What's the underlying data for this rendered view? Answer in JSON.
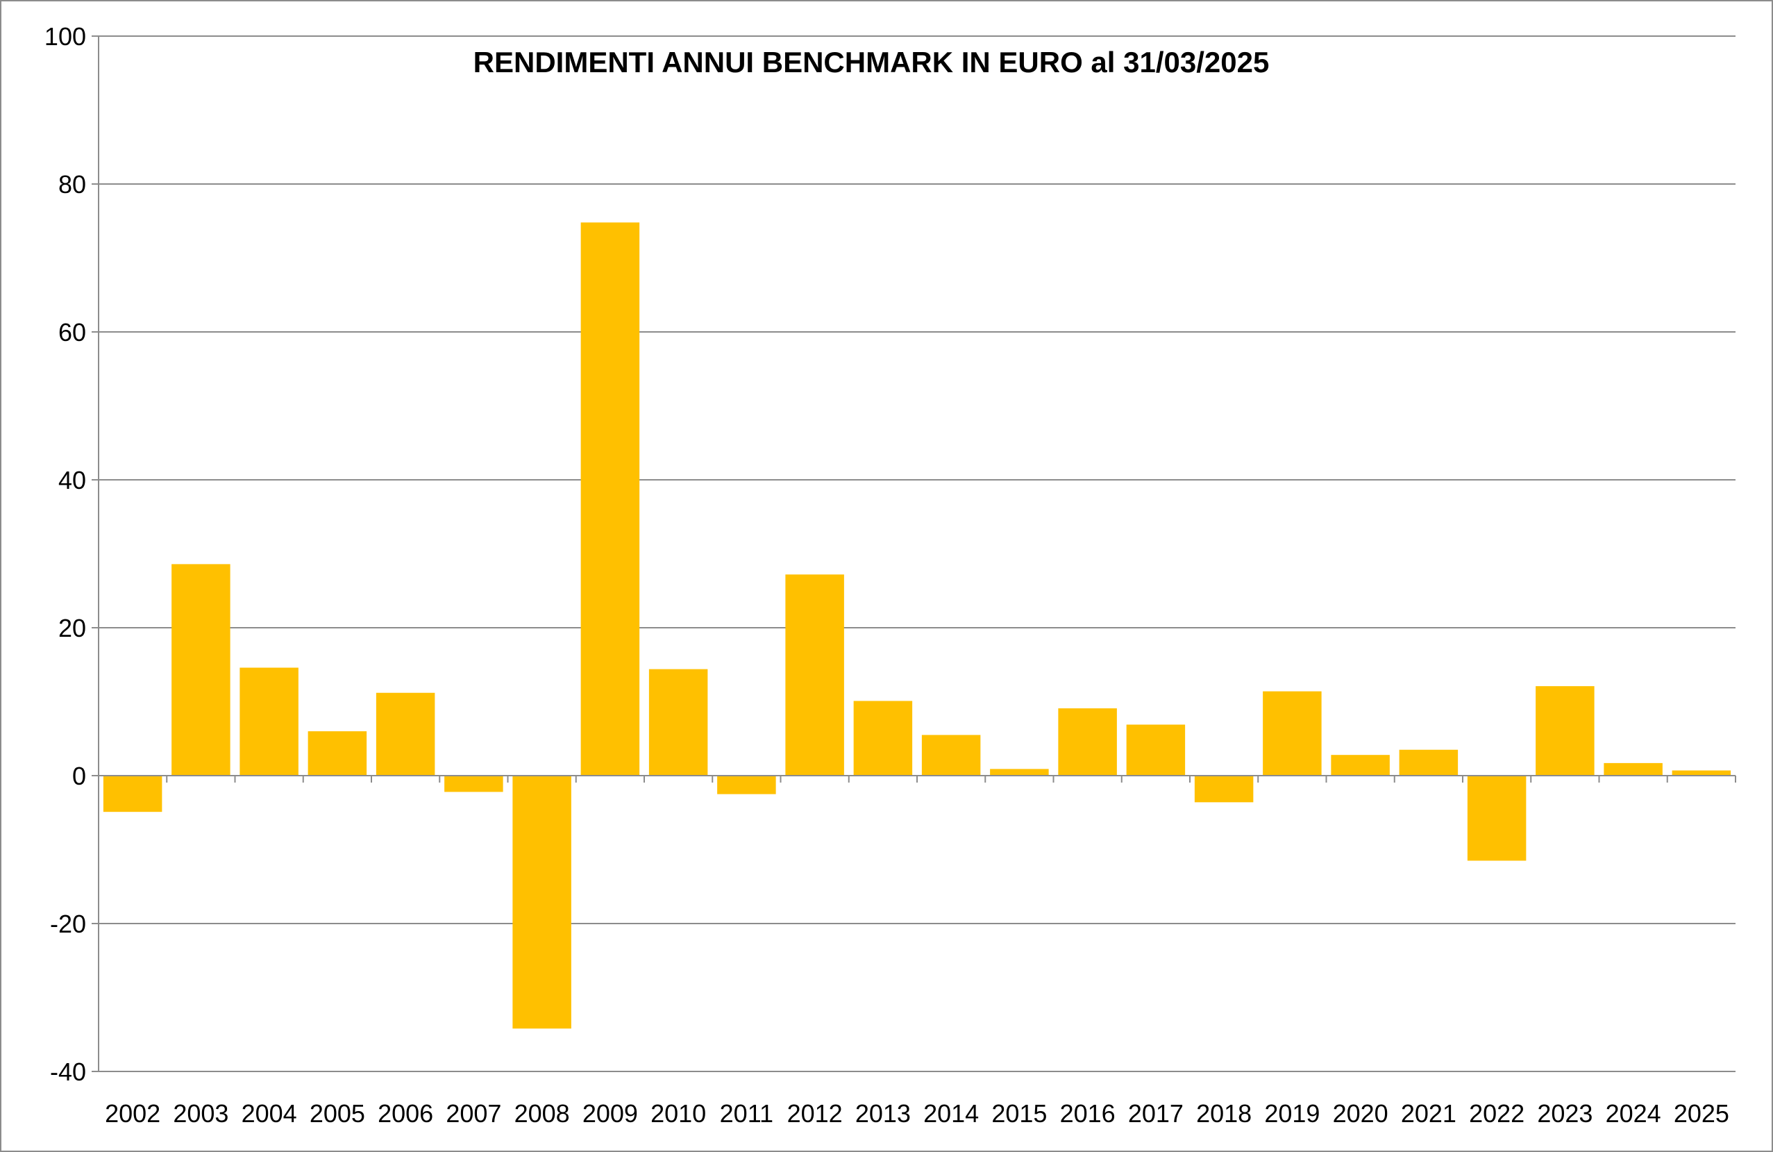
{
  "chart_data": {
    "type": "bar",
    "title": "RENDIMENTI ANNUI BENCHMARK IN EURO al 31/03/2025",
    "xlabel": "",
    "ylabel": "",
    "ylim": [
      -40,
      100
    ],
    "yticks": [
      -40,
      -20,
      0,
      20,
      40,
      60,
      80,
      100
    ],
    "grid": true,
    "bar_color": "#FFC000",
    "categories": [
      "2002",
      "2003",
      "2004",
      "2005",
      "2006",
      "2007",
      "2008",
      "2009",
      "2010",
      "2011",
      "2012",
      "2013",
      "2014",
      "2015",
      "2016",
      "2017",
      "2018",
      "2019",
      "2020",
      "2021",
      "2022",
      "2023",
      "2024",
      "2025"
    ],
    "values": [
      -4.9,
      28.6,
      14.6,
      6.0,
      11.2,
      -2.2,
      -34.2,
      74.8,
      14.4,
      -2.5,
      27.2,
      10.1,
      5.5,
      0.9,
      9.1,
      6.9,
      -3.6,
      11.4,
      2.8,
      3.5,
      -11.5,
      12.1,
      1.7,
      0.7
    ]
  }
}
